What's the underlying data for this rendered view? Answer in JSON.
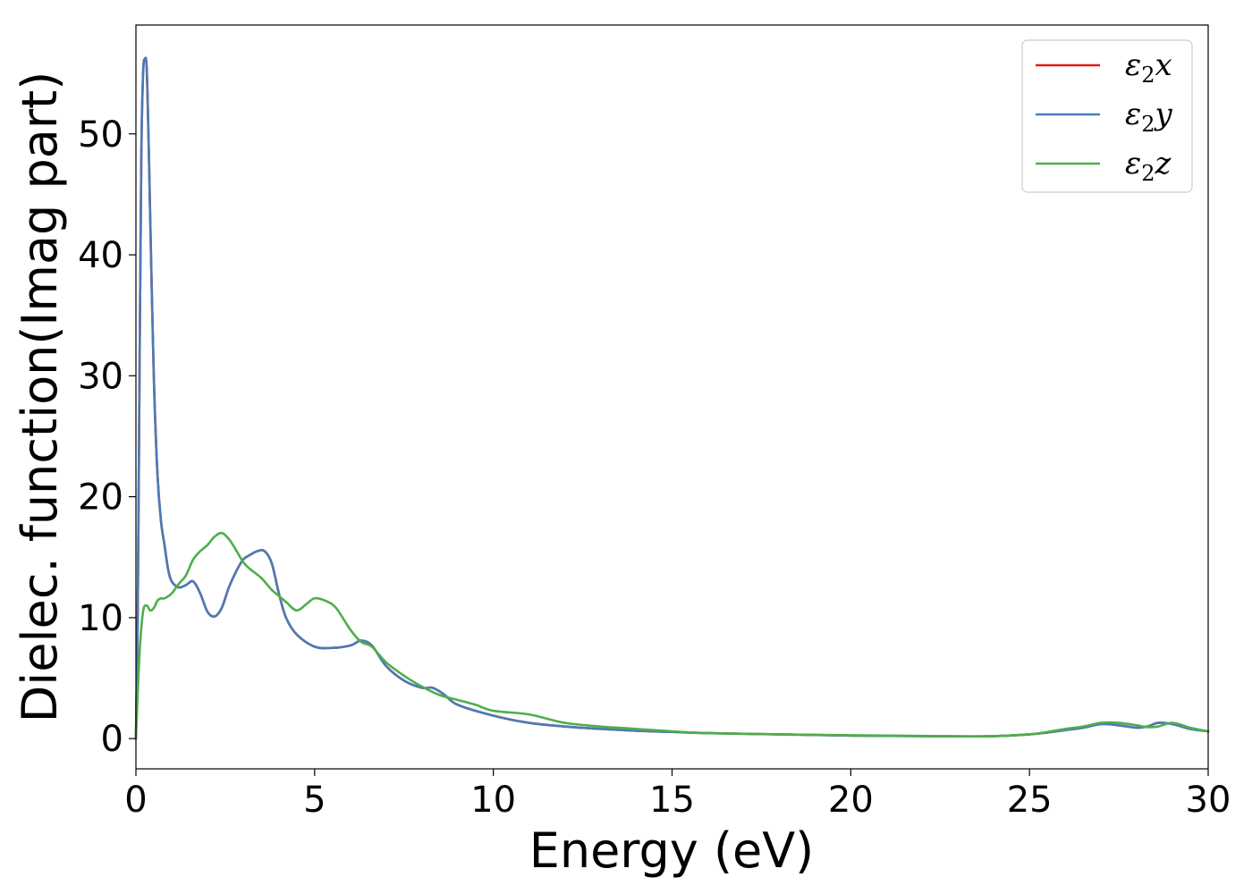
{
  "chart_data": {
    "type": "line",
    "title": "",
    "xlabel": "Energy (eV)",
    "ylabel": "Dielec. function(Imag part)",
    "xlim": [
      0,
      30
    ],
    "ylim": [
      -2.5,
      59
    ],
    "grid": false,
    "legend_position": "top-right",
    "x_ticks": [
      0,
      5,
      10,
      15,
      20,
      25,
      30
    ],
    "y_ticks": [
      0,
      10,
      20,
      30,
      40,
      50
    ],
    "series": [
      {
        "name": "ε2x",
        "legend_base": "ε",
        "legend_sub": "2",
        "legend_axis": "x",
        "color": "#e41a1c",
        "x": [
          0,
          0.05,
          0.1,
          0.15,
          0.2,
          0.25,
          0.3,
          0.35,
          0.4,
          0.5,
          0.6,
          0.7,
          0.8,
          0.9,
          1.0,
          1.2,
          1.4,
          1.6,
          1.8,
          2.0,
          2.2,
          2.4,
          2.6,
          2.8,
          3.0,
          3.2,
          3.4,
          3.6,
          3.8,
          4.0,
          4.2,
          4.5,
          5.0,
          5.5,
          6.0,
          6.3,
          6.6,
          7.0,
          7.5,
          8.0,
          8.3,
          8.6,
          9.0,
          10.0,
          11.0,
          12.0,
          13.0,
          14.0,
          15.0,
          16.0,
          18.0,
          20.0,
          22.0,
          23.0,
          24.0,
          25.0,
          25.5,
          26.0,
          26.5,
          27.0,
          27.5,
          28.0,
          28.3,
          28.6,
          29.0,
          29.5,
          30.0
        ],
        "values": [
          0,
          10,
          30,
          48,
          55,
          56.2,
          55.5,
          50,
          43,
          30,
          22,
          18,
          16,
          14,
          13,
          12.5,
          12.7,
          13.0,
          12.0,
          10.5,
          10.1,
          10.8,
          12.5,
          13.8,
          14.8,
          15.2,
          15.5,
          15.5,
          14.5,
          12.0,
          10.0,
          8.6,
          7.6,
          7.5,
          7.7,
          8.1,
          7.7,
          6.0,
          4.8,
          4.2,
          4.2,
          3.7,
          2.8,
          1.9,
          1.3,
          1.0,
          0.8,
          0.65,
          0.55,
          0.45,
          0.35,
          0.25,
          0.2,
          0.18,
          0.2,
          0.35,
          0.5,
          0.7,
          0.9,
          1.2,
          1.1,
          0.9,
          1.0,
          1.3,
          1.2,
          0.8,
          0.6
        ]
      },
      {
        "name": "ε2y",
        "legend_base": "ε",
        "legend_sub": "2",
        "legend_axis": "y",
        "color": "#4a7bb7",
        "x": [
          0,
          0.05,
          0.1,
          0.15,
          0.2,
          0.25,
          0.3,
          0.35,
          0.4,
          0.5,
          0.6,
          0.7,
          0.8,
          0.9,
          1.0,
          1.2,
          1.4,
          1.6,
          1.8,
          2.0,
          2.2,
          2.4,
          2.6,
          2.8,
          3.0,
          3.2,
          3.4,
          3.6,
          3.8,
          4.0,
          4.2,
          4.5,
          5.0,
          5.5,
          6.0,
          6.3,
          6.6,
          7.0,
          7.5,
          8.0,
          8.3,
          8.6,
          9.0,
          10.0,
          11.0,
          12.0,
          13.0,
          14.0,
          15.0,
          16.0,
          18.0,
          20.0,
          22.0,
          23.0,
          24.0,
          25.0,
          25.5,
          26.0,
          26.5,
          27.0,
          27.5,
          28.0,
          28.3,
          28.6,
          29.0,
          29.5,
          30.0
        ],
        "values": [
          0,
          10,
          30,
          48,
          55,
          56.2,
          55.5,
          50,
          43,
          30,
          22,
          18,
          16,
          14,
          13,
          12.5,
          12.7,
          13.0,
          12.0,
          10.5,
          10.1,
          10.8,
          12.5,
          13.8,
          14.8,
          15.2,
          15.5,
          15.5,
          14.5,
          12.0,
          10.0,
          8.6,
          7.6,
          7.5,
          7.7,
          8.1,
          7.7,
          6.0,
          4.8,
          4.2,
          4.2,
          3.7,
          2.8,
          1.9,
          1.3,
          1.0,
          0.8,
          0.65,
          0.55,
          0.45,
          0.35,
          0.25,
          0.2,
          0.18,
          0.2,
          0.35,
          0.5,
          0.7,
          0.9,
          1.2,
          1.1,
          0.9,
          1.0,
          1.3,
          1.2,
          0.8,
          0.6
        ]
      },
      {
        "name": "ε2z",
        "legend_base": "ε",
        "legend_sub": "2",
        "legend_axis": "z",
        "color": "#4daf4a",
        "x": [
          0,
          0.1,
          0.2,
          0.3,
          0.4,
          0.5,
          0.6,
          0.7,
          0.8,
          1.0,
          1.2,
          1.4,
          1.6,
          1.8,
          2.0,
          2.2,
          2.4,
          2.6,
          2.8,
          3.0,
          3.2,
          3.5,
          3.8,
          4.0,
          4.2,
          4.5,
          4.8,
          5.0,
          5.3,
          5.6,
          6.0,
          6.3,
          6.6,
          7.0,
          7.5,
          8.0,
          8.5,
          9.0,
          9.5,
          10.0,
          11.0,
          12.0,
          13.0,
          14.0,
          15.0,
          16.0,
          18.0,
          20.0,
          22.0,
          23.0,
          24.0,
          25.0,
          25.5,
          26.0,
          26.5,
          27.0,
          27.5,
          28.0,
          28.3,
          28.6,
          29.0,
          29.5,
          30.0
        ],
        "values": [
          0,
          7,
          10.5,
          11.0,
          10.6,
          10.8,
          11.4,
          11.6,
          11.6,
          12.0,
          12.8,
          13.5,
          14.8,
          15.5,
          16.0,
          16.7,
          17.0,
          16.5,
          15.6,
          14.6,
          14.0,
          13.3,
          12.3,
          11.8,
          11.3,
          10.6,
          11.2,
          11.6,
          11.4,
          10.8,
          9.0,
          8.0,
          7.6,
          6.3,
          5.2,
          4.3,
          3.6,
          3.2,
          2.8,
          2.3,
          2.0,
          1.3,
          1.0,
          0.8,
          0.6,
          0.45,
          0.35,
          0.28,
          0.22,
          0.2,
          0.2,
          0.35,
          0.55,
          0.8,
          1.0,
          1.3,
          1.3,
          1.1,
          0.95,
          1.0,
          1.3,
          0.9,
          0.6
        ]
      }
    ]
  }
}
